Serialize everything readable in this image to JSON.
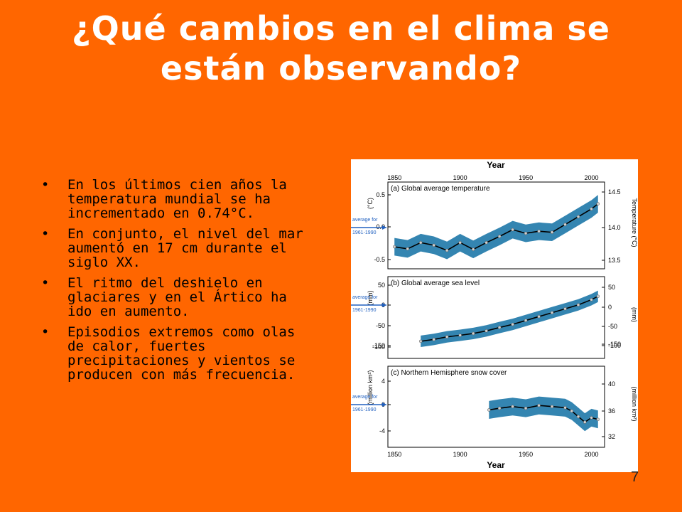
{
  "slide": {
    "title_lines": [
      "¿Qué cambios en el clima se",
      "están observando?"
    ],
    "bullets": [
      "En los últimos cien años la temperatura mundial se ha incrementado en 0.74°C.",
      " En conjunto, el nivel del mar aumentó en 17 cm durante el siglo XX.",
      "El ritmo del deshielo en glaciares y en el Ártico ha ido en aumento.",
      " Episodios extremos como olas de calor,  fuertes precipitaciones y vientos se producen con más frecuencia."
    ],
    "page_number": "7",
    "colors": {
      "background": "#FF6600",
      "title": "#FFFFFF",
      "band": "#1E78A8",
      "arrow": "#2060C0"
    }
  },
  "figure": {
    "x_axis_title": "Year",
    "x_ticks": [
      "1850",
      "1900",
      "1950",
      "2000"
    ],
    "average_label_1": "average for",
    "average_label_2": "1961-1990",
    "panels": [
      {
        "title": "(a) Global average temperature",
        "left_unit": "(°C)",
        "right_unit": "Temperature (°C)",
        "left_ticks": [
          "0.5",
          "0.0",
          "-0.5"
        ],
        "right_ticks": [
          "14.5",
          "14.0",
          "13.5"
        ]
      },
      {
        "title": "(b) Global average sea level",
        "left_unit": "(mm)",
        "right_unit": "(mm)",
        "left_ticks": [
          "50",
          "0",
          "-50",
          "-100",
          "-150"
        ],
        "right_ticks": [
          "50",
          "0",
          "-50",
          "-100",
          "-150"
        ]
      },
      {
        "title": "(c) Northern Hemisphere snow cover",
        "left_unit": "(million km²)",
        "right_unit": "(million km²)",
        "left_ticks": [
          "4",
          "0",
          "-4"
        ],
        "right_ticks": [
          "40",
          "36",
          "32"
        ]
      }
    ]
  },
  "chart_data": [
    {
      "type": "line",
      "title": "(a) Global average temperature",
      "xlabel": "Year",
      "ylabel": "(°C)",
      "xlim": [
        1845,
        2010
      ],
      "ylim": [
        -0.75,
        0.65
      ],
      "x": [
        1850,
        1860,
        1870,
        1880,
        1890,
        1900,
        1910,
        1920,
        1930,
        1940,
        1950,
        1960,
        1970,
        1980,
        1990,
        2000,
        2005
      ],
      "series": [
        {
          "values": [
            -0.38,
            -0.42,
            -0.3,
            -0.35,
            -0.45,
            -0.3,
            -0.43,
            -0.3,
            -0.18,
            -0.05,
            -0.12,
            -0.08,
            -0.1,
            0.05,
            0.2,
            0.35,
            0.45
          ]
        }
      ]
    },
    {
      "type": "line",
      "title": "(b) Global average sea level",
      "xlabel": "Year",
      "ylabel": "(mm)",
      "xlim": [
        1845,
        2010
      ],
      "ylim": [
        -190,
        70
      ],
      "x": [
        1870,
        1880,
        1890,
        1900,
        1910,
        1920,
        1930,
        1940,
        1950,
        1960,
        1970,
        1980,
        1990,
        2000,
        2005
      ],
      "series": [
        {
          "values": [
            -135,
            -128,
            -118,
            -112,
            -105,
            -95,
            -82,
            -70,
            -55,
            -40,
            -25,
            -10,
            5,
            25,
            38
          ]
        }
      ]
    },
    {
      "type": "line",
      "title": "(c) Northern Hemisphere snow cover",
      "xlabel": "Year",
      "ylabel": "(million km²)",
      "xlim": [
        1845,
        2010
      ],
      "ylim": [
        -6,
        6
      ],
      "x": [
        1922,
        1930,
        1940,
        1950,
        1960,
        1970,
        1980,
        1985,
        1990,
        1995,
        2000,
        2005
      ],
      "series": [
        {
          "values": [
            0.2,
            0.5,
            0.8,
            0.5,
            1.0,
            0.8,
            0.6,
            0.0,
            -1.0,
            -2.0,
            -1.2,
            -1.5
          ]
        }
      ]
    }
  ]
}
